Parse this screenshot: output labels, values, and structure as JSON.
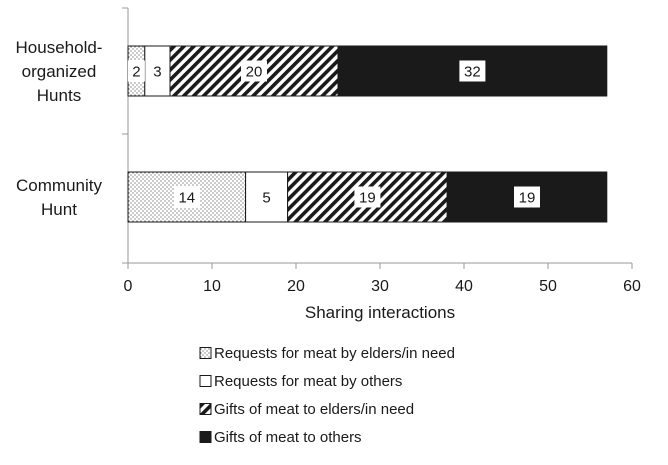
{
  "chart_data": {
    "type": "bar",
    "orientation": "horizontal",
    "stacked": true,
    "categories": [
      [
        "Household-",
        "organized",
        "Hunts"
      ],
      [
        "Community",
        "Hunt"
      ]
    ],
    "series": [
      {
        "name": "Requests for meat by elders/in need",
        "pattern": "dots",
        "values": [
          2,
          14
        ]
      },
      {
        "name": "Requests for meat by others",
        "pattern": "white",
        "values": [
          3,
          5
        ]
      },
      {
        "name": "Gifts of meat to elders/in need",
        "pattern": "hatch",
        "values": [
          20,
          19
        ]
      },
      {
        "name": "Gifts of meat to others",
        "pattern": "black",
        "values": [
          32,
          19
        ]
      }
    ],
    "xlabel": "Sharing interactions",
    "xlim": [
      0,
      60
    ],
    "xticks": [
      0,
      10,
      20,
      30,
      40,
      50,
      60
    ],
    "grid": false,
    "legend_position": "bottom",
    "colors": {
      "ink": "#1a1a1a",
      "axis": "#9a9a9a",
      "label_box": "#ffffff"
    }
  }
}
